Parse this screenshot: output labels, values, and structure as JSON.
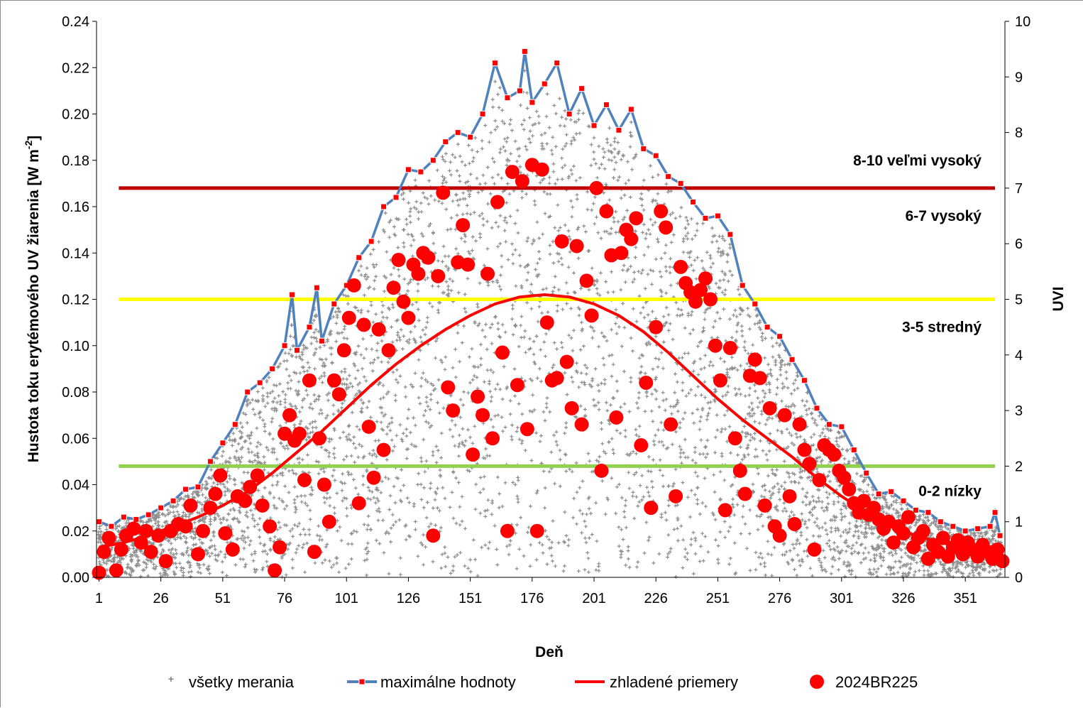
{
  "chart_data": {
    "type": "scatter",
    "title": "",
    "xlabel": "Deň",
    "ylabel": "Hustota toku erytémového UV žiarenia [W m⁻²]",
    "ylabel_parts": {
      "main": "Hustota toku erytémového UV žiarenia [W m",
      "sup": "-2",
      "end": "]"
    },
    "y2label": "UVI",
    "xlim": [
      0,
      367
    ],
    "ylim": [
      0,
      0.24
    ],
    "y2lim": [
      0,
      10
    ],
    "xticks": [
      1,
      26,
      51,
      76,
      101,
      126,
      151,
      176,
      201,
      226,
      251,
      276,
      301,
      326,
      351
    ],
    "yticks": [
      "0.00",
      "0.02",
      "0.04",
      "0.06",
      "0.08",
      "0.10",
      "0.12",
      "0.14",
      "0.16",
      "0.18",
      "0.20",
      "0.22",
      "0.24"
    ],
    "y2ticks": [
      "0",
      "1",
      "2",
      "3",
      "4",
      "5",
      "6",
      "7",
      "8",
      "9",
      "10"
    ],
    "grid": false,
    "legend_position": "bottom",
    "uvi_levels": [
      {
        "uvi": 7,
        "color": "#c00000",
        "label": "6-7 vysoký"
      },
      {
        "uvi": 5,
        "color": "#ffff00",
        "label": "3-5 stredný"
      },
      {
        "uvi": 2,
        "color": "#92d050",
        "label": "0-2 nízky"
      }
    ],
    "zone_labels": [
      {
        "text": "8-10 veľmi vysoký",
        "uvi": 7.5
      },
      {
        "text": "6-7 vysoký",
        "uvi": 6.5
      },
      {
        "text": "3-5 stredný",
        "uvi": 4.5
      },
      {
        "text": "0-2 nízky",
        "uvi": 1.55
      }
    ],
    "series": [
      {
        "name": "všetky merania",
        "kind": "scatter-cross",
        "color": "#7f7f7f",
        "note": "dense cloud of all measurements filling the area between 0 and the daily maximum envelope"
      },
      {
        "name": "maximálne hodnoty",
        "kind": "line-markers",
        "color": "#4f81bd",
        "marker_color": "#ff0000",
        "x": [
          1,
          6,
          11,
          16,
          21,
          26,
          31,
          36,
          41,
          46,
          51,
          56,
          61,
          66,
          71,
          76,
          79,
          81,
          86,
          89,
          91,
          96,
          101,
          106,
          111,
          116,
          121,
          126,
          131,
          136,
          141,
          146,
          151,
          156,
          161,
          166,
          171,
          173,
          176,
          181,
          186,
          191,
          196,
          201,
          206,
          211,
          216,
          221,
          226,
          231,
          236,
          241,
          246,
          251,
          256,
          261,
          266,
          271,
          276,
          281,
          286,
          291,
          296,
          301,
          306,
          311,
          316,
          321,
          326,
          331,
          336,
          341,
          346,
          351,
          356,
          361,
          363,
          365
        ],
        "values": [
          0.024,
          0.022,
          0.026,
          0.025,
          0.027,
          0.03,
          0.033,
          0.038,
          0.039,
          0.05,
          0.058,
          0.066,
          0.08,
          0.084,
          0.09,
          0.1,
          0.122,
          0.098,
          0.108,
          0.125,
          0.102,
          0.118,
          0.126,
          0.138,
          0.145,
          0.16,
          0.164,
          0.176,
          0.175,
          0.18,
          0.188,
          0.192,
          0.19,
          0.2,
          0.222,
          0.207,
          0.21,
          0.227,
          0.205,
          0.213,
          0.222,
          0.2,
          0.211,
          0.195,
          0.204,
          0.193,
          0.202,
          0.185,
          0.182,
          0.173,
          0.17,
          0.162,
          0.155,
          0.156,
          0.148,
          0.126,
          0.118,
          0.108,
          0.104,
          0.094,
          0.085,
          0.073,
          0.066,
          0.065,
          0.055,
          0.045,
          0.036,
          0.037,
          0.033,
          0.029,
          0.028,
          0.024,
          0.022,
          0.02,
          0.021,
          0.022,
          0.028,
          0.018
        ]
      },
      {
        "name": "zhladené  priemery",
        "kind": "line",
        "color": "#ff0000",
        "x": [
          1,
          11,
          21,
          31,
          41,
          51,
          61,
          71,
          81,
          91,
          101,
          111,
          121,
          131,
          141,
          151,
          161,
          171,
          181,
          191,
          201,
          211,
          221,
          231,
          241,
          251,
          261,
          271,
          281,
          291,
          301,
          311,
          321,
          331,
          341,
          351,
          361,
          366
        ],
        "values": [
          0.013,
          0.015,
          0.018,
          0.022,
          0.026,
          0.031,
          0.037,
          0.045,
          0.054,
          0.063,
          0.073,
          0.083,
          0.092,
          0.1,
          0.107,
          0.113,
          0.118,
          0.121,
          0.122,
          0.121,
          0.118,
          0.113,
          0.106,
          0.097,
          0.087,
          0.077,
          0.068,
          0.06,
          0.052,
          0.043,
          0.035,
          0.028,
          0.022,
          0.018,
          0.015,
          0.013,
          0.012,
          0.012
        ]
      },
      {
        "name": "2024BR225",
        "kind": "scatter-dot",
        "color": "#ff0000",
        "points": [
          [
            1,
            0.002
          ],
          [
            3,
            0.011
          ],
          [
            5,
            0.017
          ],
          [
            8,
            0.003
          ],
          [
            10,
            0.012
          ],
          [
            12,
            0.018
          ],
          [
            15,
            0.021
          ],
          [
            18,
            0.015
          ],
          [
            20,
            0.02
          ],
          [
            22,
            0.011
          ],
          [
            25,
            0.018
          ],
          [
            28,
            0.007
          ],
          [
            30,
            0.02
          ],
          [
            33,
            0.023
          ],
          [
            36,
            0.022
          ],
          [
            38,
            0.031
          ],
          [
            41,
            0.01
          ],
          [
            43,
            0.02
          ],
          [
            46,
            0.03
          ],
          [
            48,
            0.036
          ],
          [
            50,
            0.044
          ],
          [
            52,
            0.019
          ],
          [
            55,
            0.012
          ],
          [
            57,
            0.035
          ],
          [
            60,
            0.033
          ],
          [
            62,
            0.039
          ],
          [
            65,
            0.044
          ],
          [
            67,
            0.031
          ],
          [
            70,
            0.022
          ],
          [
            72,
            0.003
          ],
          [
            74,
            0.013
          ],
          [
            76,
            0.062
          ],
          [
            78,
            0.07
          ],
          [
            80,
            0.059
          ],
          [
            82,
            0.062
          ],
          [
            84,
            0.042
          ],
          [
            86,
            0.085
          ],
          [
            88,
            0.011
          ],
          [
            90,
            0.06
          ],
          [
            92,
            0.04
          ],
          [
            94,
            0.024
          ],
          [
            96,
            0.085
          ],
          [
            98,
            0.079
          ],
          [
            100,
            0.098
          ],
          [
            102,
            0.112
          ],
          [
            104,
            0.126
          ],
          [
            106,
            0.032
          ],
          [
            108,
            0.109
          ],
          [
            110,
            0.065
          ],
          [
            112,
            0.043
          ],
          [
            114,
            0.107
          ],
          [
            116,
            0.055
          ],
          [
            118,
            0.098
          ],
          [
            120,
            0.125
          ],
          [
            122,
            0.137
          ],
          [
            124,
            0.119
          ],
          [
            126,
            0.112
          ],
          [
            128,
            0.135
          ],
          [
            130,
            0.131
          ],
          [
            132,
            0.14
          ],
          [
            134,
            0.138
          ],
          [
            136,
            0.018
          ],
          [
            138,
            0.13
          ],
          [
            140,
            0.166
          ],
          [
            142,
            0.082
          ],
          [
            144,
            0.072
          ],
          [
            146,
            0.136
          ],
          [
            148,
            0.152
          ],
          [
            150,
            0.135
          ],
          [
            152,
            0.053
          ],
          [
            154,
            0.078
          ],
          [
            156,
            0.07
          ],
          [
            158,
            0.131
          ],
          [
            160,
            0.06
          ],
          [
            162,
            0.162
          ],
          [
            164,
            0.097
          ],
          [
            166,
            0.02
          ],
          [
            168,
            0.175
          ],
          [
            170,
            0.083
          ],
          [
            172,
            0.171
          ],
          [
            174,
            0.064
          ],
          [
            176,
            0.178
          ],
          [
            178,
            0.02
          ],
          [
            180,
            0.176
          ],
          [
            182,
            0.11
          ],
          [
            184,
            0.085
          ],
          [
            186,
            0.086
          ],
          [
            188,
            0.145
          ],
          [
            190,
            0.093
          ],
          [
            192,
            0.073
          ],
          [
            194,
            0.143
          ],
          [
            196,
            0.066
          ],
          [
            198,
            0.128
          ],
          [
            200,
            0.113
          ],
          [
            202,
            0.168
          ],
          [
            204,
            0.046
          ],
          [
            206,
            0.158
          ],
          [
            208,
            0.139
          ],
          [
            210,
            0.069
          ],
          [
            212,
            0.14
          ],
          [
            214,
            0.15
          ],
          [
            216,
            0.146
          ],
          [
            218,
            0.155
          ],
          [
            220,
            0.057
          ],
          [
            222,
            0.084
          ],
          [
            224,
            0.03
          ],
          [
            226,
            0.108
          ],
          [
            228,
            0.158
          ],
          [
            230,
            0.151
          ],
          [
            232,
            0.066
          ],
          [
            234,
            0.035
          ],
          [
            236,
            0.134
          ],
          [
            238,
            0.127
          ],
          [
            240,
            0.123
          ],
          [
            242,
            0.119
          ],
          [
            244,
            0.124
          ],
          [
            246,
            0.129
          ],
          [
            248,
            0.12
          ],
          [
            250,
            0.1
          ],
          [
            252,
            0.085
          ],
          [
            254,
            0.029
          ],
          [
            256,
            0.099
          ],
          [
            258,
            0.06
          ],
          [
            260,
            0.046
          ],
          [
            262,
            0.036
          ],
          [
            264,
            0.087
          ],
          [
            266,
            0.094
          ],
          [
            268,
            0.086
          ],
          [
            270,
            0.031
          ],
          [
            272,
            0.073
          ],
          [
            274,
            0.022
          ],
          [
            276,
            0.018
          ],
          [
            278,
            0.07
          ],
          [
            280,
            0.035
          ],
          [
            282,
            0.023
          ],
          [
            284,
            0.066
          ],
          [
            286,
            0.055
          ],
          [
            288,
            0.049
          ],
          [
            290,
            0.012
          ],
          [
            292,
            0.042
          ],
          [
            294,
            0.057
          ],
          [
            296,
            0.055
          ],
          [
            298,
            0.053
          ],
          [
            300,
            0.046
          ],
          [
            302,
            0.043
          ],
          [
            304,
            0.038
          ],
          [
            306,
            0.032
          ],
          [
            308,
            0.028
          ],
          [
            310,
            0.033
          ],
          [
            312,
            0.027
          ],
          [
            314,
            0.03
          ],
          [
            316,
            0.025
          ],
          [
            318,
            0.021
          ],
          [
            320,
            0.024
          ],
          [
            322,
            0.015
          ],
          [
            324,
            0.022
          ],
          [
            326,
            0.019
          ],
          [
            328,
            0.026
          ],
          [
            330,
            0.013
          ],
          [
            332,
            0.017
          ],
          [
            334,
            0.02
          ],
          [
            336,
            0.008
          ],
          [
            338,
            0.014
          ],
          [
            340,
            0.011
          ],
          [
            342,
            0.017
          ],
          [
            344,
            0.009
          ],
          [
            346,
            0.013
          ],
          [
            348,
            0.016
          ],
          [
            350,
            0.01
          ],
          [
            352,
            0.015
          ],
          [
            354,
            0.012
          ],
          [
            356,
            0.009
          ],
          [
            358,
            0.014
          ],
          [
            360,
            0.011
          ],
          [
            362,
            0.008
          ],
          [
            364,
            0.012
          ],
          [
            366,
            0.007
          ]
        ]
      }
    ]
  }
}
